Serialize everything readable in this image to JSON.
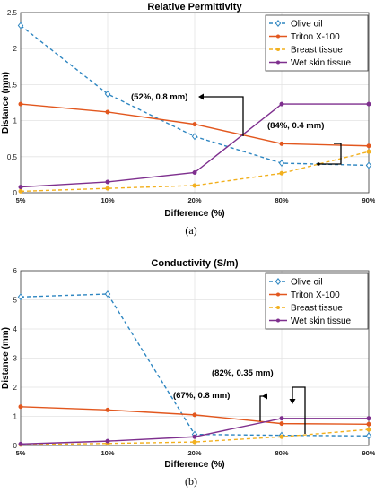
{
  "chart_data": [
    {
      "type": "line",
      "panel": "(a)",
      "title": "Relative Permittivity",
      "xlabel": "Difference (%)",
      "ylabel": "Distance (mm)",
      "categories": [
        "5%",
        "10%",
        "20%",
        "80%",
        "90%"
      ],
      "ylim": [
        0,
        2.5
      ],
      "yticks": [
        0,
        0.5,
        1,
        1.5,
        2,
        2.5
      ],
      "grid": true,
      "legend_position": "top-right",
      "series": [
        {
          "name": "Olive oil",
          "color": "#2e86c1",
          "dash": true,
          "marker": "diamond",
          "values": [
            2.32,
            1.37,
            0.78,
            0.41,
            0.38
          ]
        },
        {
          "name": "Triton X-100",
          "color": "#e2571e",
          "dash": false,
          "marker": "circle",
          "values": [
            1.23,
            1.12,
            0.95,
            0.68,
            0.65
          ]
        },
        {
          "name": "Breast tissue",
          "color": "#f2b01e",
          "dash": true,
          "marker": "circle",
          "values": [
            0.02,
            0.06,
            0.1,
            0.27,
            0.57
          ]
        },
        {
          "name": "Wet skin tissue",
          "color": "#7e2f8e",
          "dash": false,
          "marker": "circle",
          "values": [
            0.08,
            0.15,
            0.28,
            1.23,
            1.23
          ]
        }
      ],
      "annotations": [
        {
          "text": "(52%, 0.8 mm)"
        },
        {
          "text": "(84%, 0.4 mm)"
        }
      ]
    },
    {
      "type": "line",
      "panel": "(b)",
      "title": "Conductivity (S/m)",
      "xlabel": "Difference (%)",
      "ylabel": "Distance (mm)",
      "categories": [
        "5%",
        "10%",
        "20%",
        "80%",
        "90%"
      ],
      "ylim": [
        0,
        6
      ],
      "yticks": [
        0,
        1,
        2,
        3,
        4,
        5,
        6
      ],
      "grid": true,
      "legend_position": "top-right",
      "series": [
        {
          "name": "Olive oil",
          "color": "#2e86c1",
          "dash": true,
          "marker": "diamond",
          "values": [
            5.1,
            5.2,
            0.38,
            0.35,
            0.33
          ]
        },
        {
          "name": "Triton X-100",
          "color": "#e2571e",
          "dash": false,
          "marker": "circle",
          "values": [
            1.33,
            1.22,
            1.05,
            0.75,
            0.73
          ]
        },
        {
          "name": "Breast tissue",
          "color": "#f2b01e",
          "dash": true,
          "marker": "circle",
          "values": [
            0.03,
            0.07,
            0.12,
            0.3,
            0.55
          ]
        },
        {
          "name": "Wet skin tissue",
          "color": "#7e2f8e",
          "dash": false,
          "marker": "circle",
          "values": [
            0.05,
            0.15,
            0.3,
            0.93,
            0.93
          ]
        }
      ],
      "annotations": [
        {
          "text": "(67%, 0.8 mm)"
        },
        {
          "text": "(82%, 0.35 mm)"
        }
      ]
    }
  ]
}
